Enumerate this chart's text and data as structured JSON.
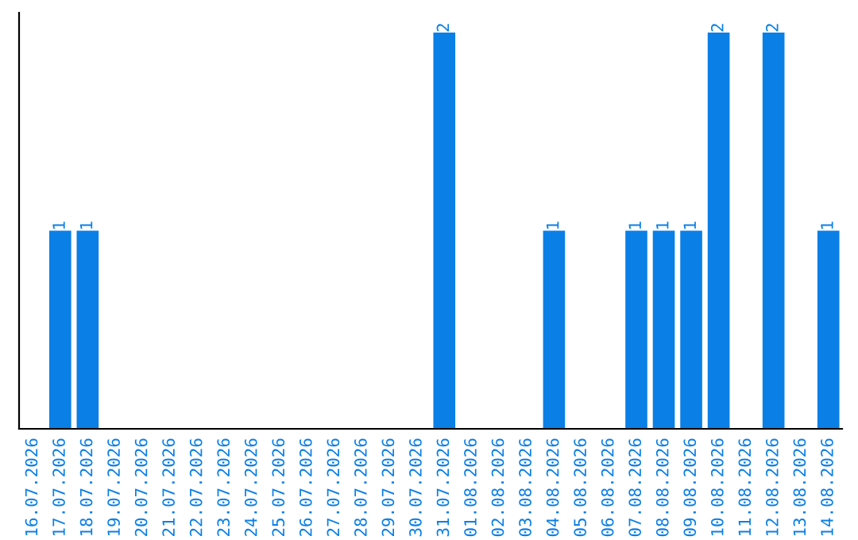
{
  "chart_data": {
    "type": "bar",
    "categories": [
      "16.07.2026",
      "17.07.2026",
      "18.07.2026",
      "19.07.2026",
      "20.07.2026",
      "21.07.2026",
      "22.07.2026",
      "23.07.2026",
      "24.07.2026",
      "25.07.2026",
      "26.07.2026",
      "27.07.2026",
      "28.07.2026",
      "29.07.2026",
      "30.07.2026",
      "31.07.2026",
      "01.08.2026",
      "02.08.2026",
      "03.08.2026",
      "04.08.2026",
      "05.08.2026",
      "06.08.2026",
      "07.08.2026",
      "08.08.2026",
      "09.08.2026",
      "10.08.2026",
      "11.08.2026",
      "12.08.2026",
      "13.08.2026",
      "14.08.2026"
    ],
    "values": [
      0,
      1,
      1,
      0,
      0,
      0,
      0,
      0,
      0,
      0,
      0,
      0,
      0,
      0,
      0,
      2,
      0,
      0,
      0,
      1,
      0,
      0,
      1,
      1,
      1,
      2,
      0,
      2,
      0,
      1
    ],
    "value_labels": [
      null,
      "1",
      "1",
      null,
      null,
      null,
      null,
      null,
      null,
      null,
      null,
      null,
      null,
      null,
      null,
      "2",
      null,
      null,
      null,
      "1",
      null,
      null,
      "1",
      "1",
      "1",
      "2",
      null,
      "2",
      null,
      "1"
    ],
    "color": "#0a7fe6",
    "tick_labels": "x",
    "grid": false,
    "legend": false
  }
}
